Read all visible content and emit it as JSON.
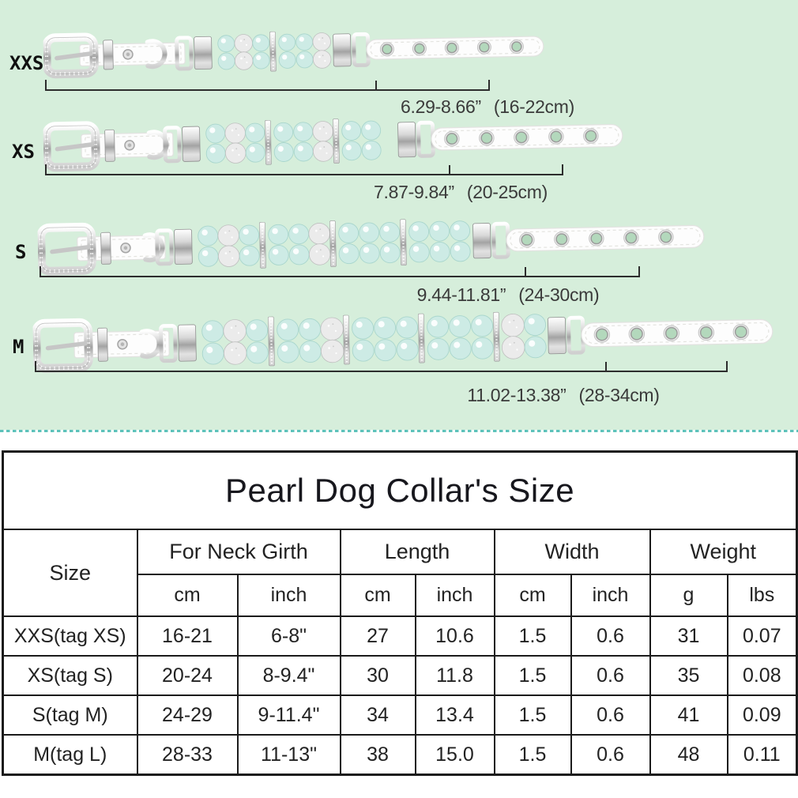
{
  "hero": {
    "rows": [
      {
        "size_label": "XXS",
        "range_inch": "6.29-8.66”",
        "range_cm": "(16-22cm)"
      },
      {
        "size_label": "XS",
        "range_inch": "7.87-9.84”",
        "range_cm": "(20-25cm)"
      },
      {
        "size_label": "S",
        "range_inch": "9.44-11.81”",
        "range_cm": "(24-30cm)"
      },
      {
        "size_label": "M",
        "range_inch": "11.02-13.38”",
        "range_cm": "(28-34cm)"
      }
    ]
  },
  "size_table": {
    "title": "Pearl Dog Collar's Size",
    "corner_header": "Size",
    "column_groups": [
      {
        "label": "For Neck Girth",
        "units": [
          "cm",
          "inch"
        ]
      },
      {
        "label": "Length",
        "units": [
          "cm",
          "inch"
        ]
      },
      {
        "label": "Width",
        "units": [
          "cm",
          "inch"
        ]
      },
      {
        "label": "Weight",
        "units": [
          "g",
          "lbs"
        ]
      }
    ],
    "rows": [
      {
        "size": "XXS(tag XS)",
        "neck_cm": "16-21",
        "neck_inch": "6-8\"",
        "length_cm": "27",
        "length_inch": "10.6",
        "width_cm": "1.5",
        "width_inch": "0.6",
        "weight_g": "31",
        "weight_lbs": "0.07"
      },
      {
        "size": "XS(tag S)",
        "neck_cm": "20-24",
        "neck_inch": "8-9.4\"",
        "length_cm": "30",
        "length_inch": "11.8",
        "width_cm": "1.5",
        "width_inch": "0.6",
        "weight_g": "35",
        "weight_lbs": "0.08"
      },
      {
        "size": "S(tag M)",
        "neck_cm": "24-29",
        "neck_inch": "9-11.4\"",
        "length_cm": "34",
        "length_inch": "13.4",
        "width_cm": "1.5",
        "width_inch": "0.6",
        "weight_g": "41",
        "weight_lbs": "0.09"
      },
      {
        "size": "M(tag L)",
        "neck_cm": "28-33",
        "neck_inch": "11-13\"",
        "length_cm": "38",
        "length_inch": "15.0",
        "width_cm": "1.5",
        "width_inch": "0.6",
        "weight_g": "48",
        "weight_lbs": "0.11"
      }
    ]
  },
  "colors": {
    "hero_background": "#d6eedb",
    "divider_teal": "#5cc2ba",
    "pearl_mint": "#cdebe5",
    "table_line": "#1b1b1b"
  }
}
